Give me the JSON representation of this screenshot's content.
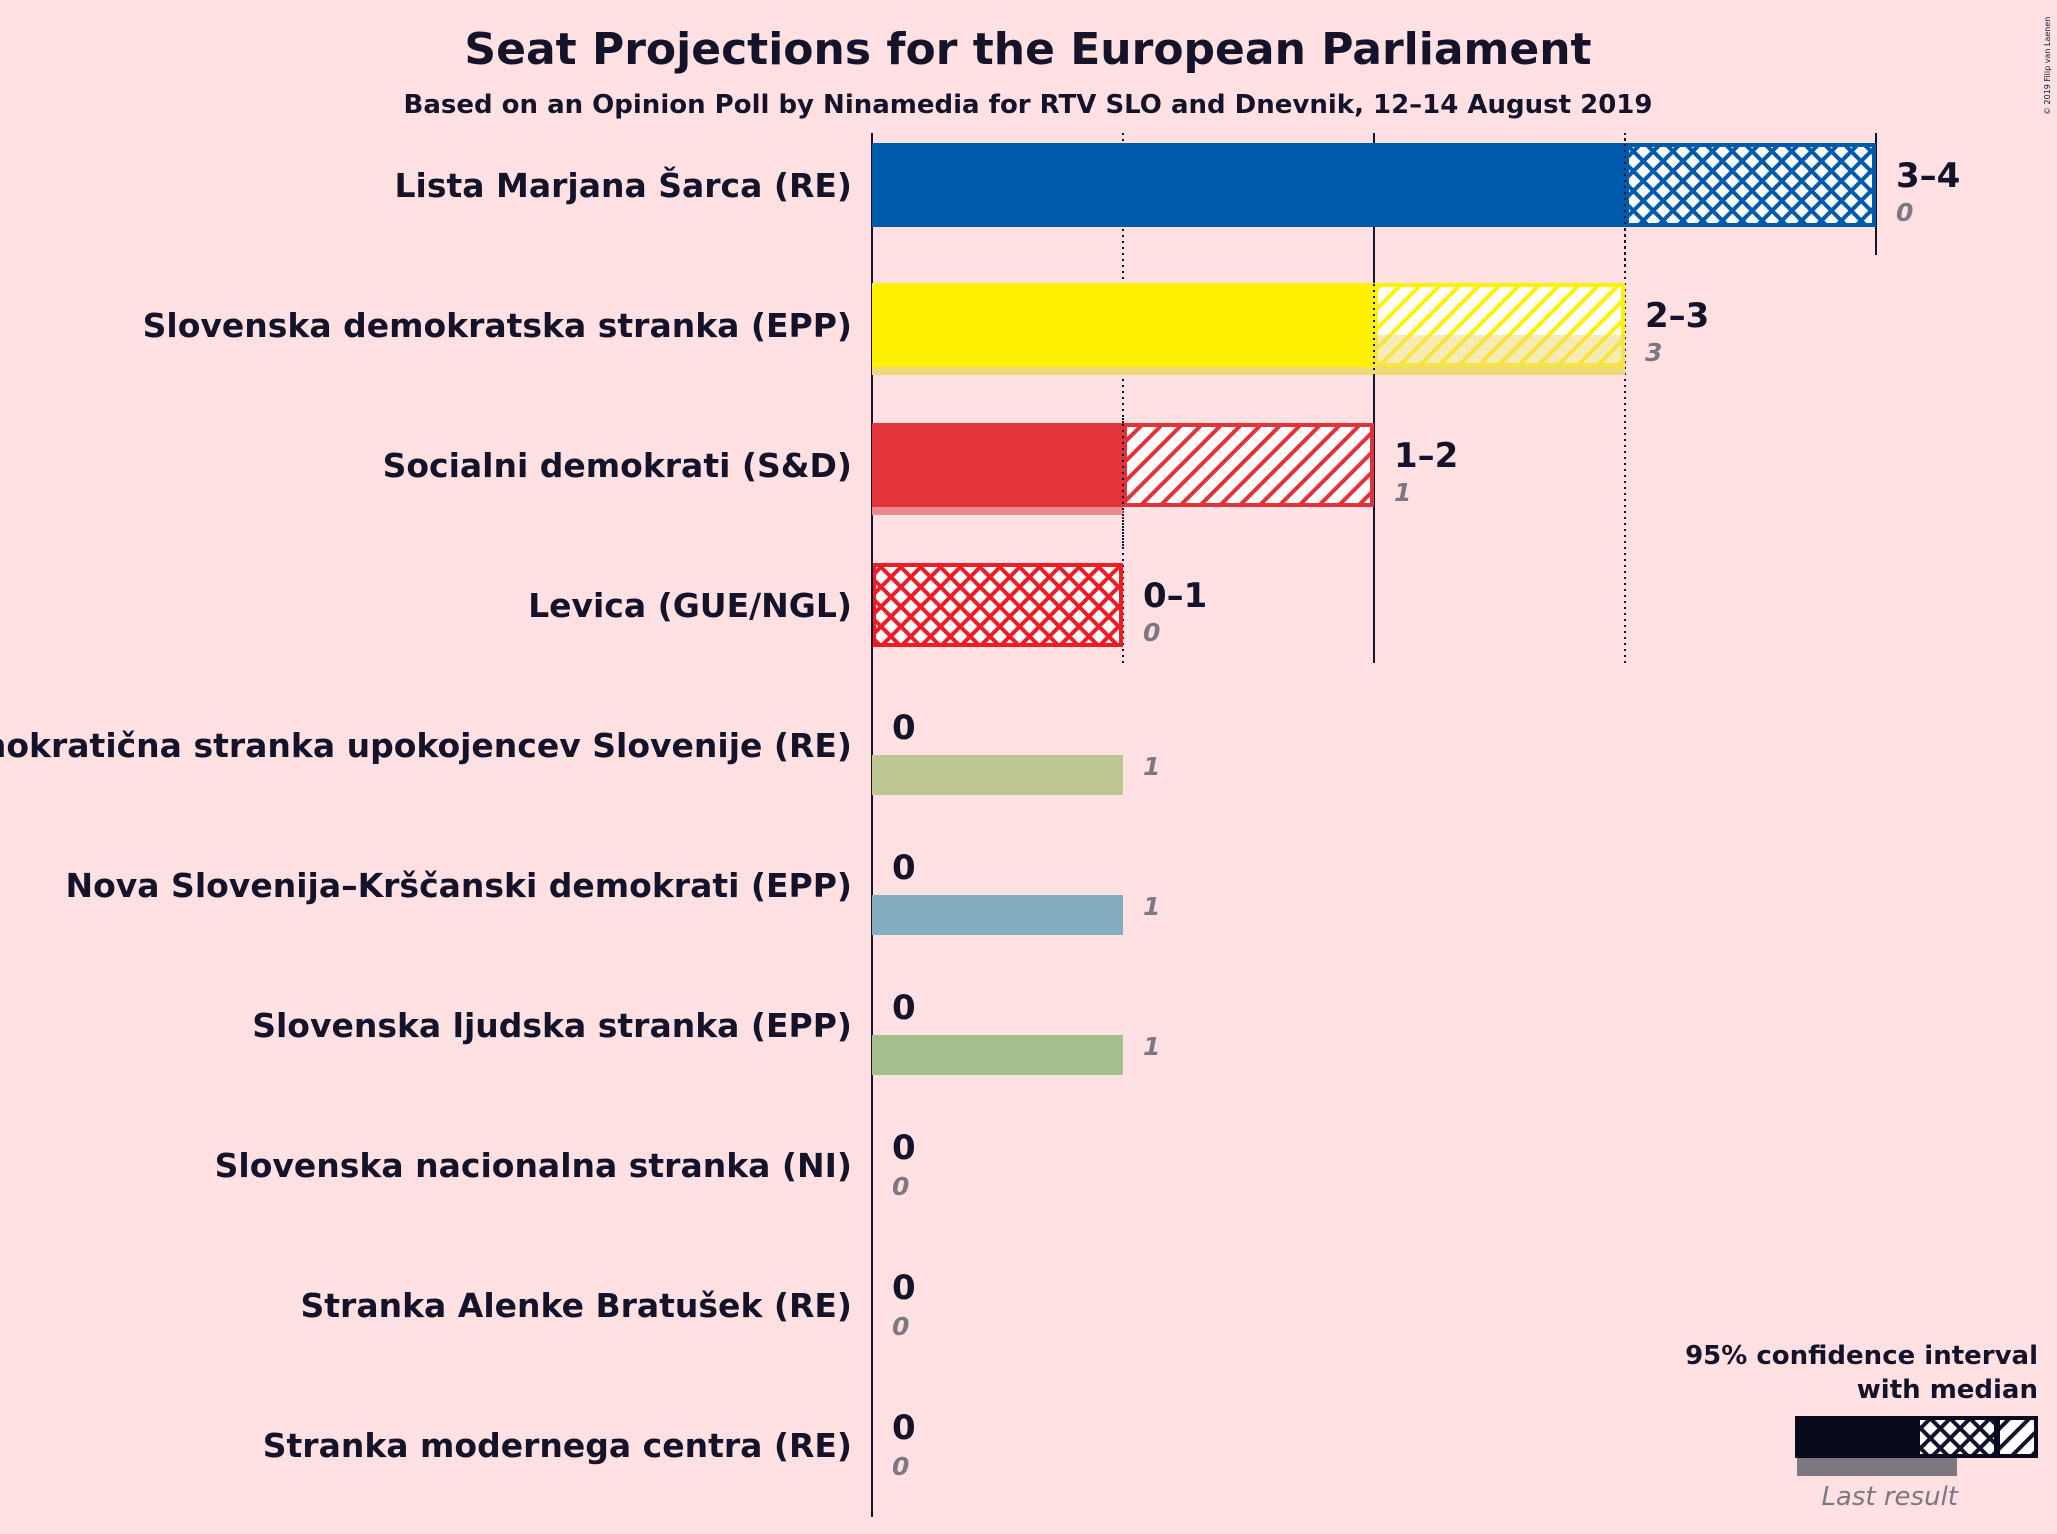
{
  "title": "Seat Projections for the European Parliament",
  "subtitle": "Based on an Opinion Poll by Ninamedia for RTV SLO and Dnevnik, 12–14 August 2019",
  "copyright": "© 2019 Filip van Laenen",
  "legend": {
    "line1": "95% confidence interval",
    "line2": "with median",
    "last_result": "Last result"
  },
  "chart_data": {
    "type": "bar",
    "orientation": "horizontal",
    "title": "Seat Projections for the European Parliament",
    "subtitle": "Based on an Opinion Poll by Ninamedia for RTV SLO and Dnevnik, 12–14 August 2019",
    "xlim": [
      0,
      4
    ],
    "gridlines": [
      1,
      2,
      3
    ],
    "categories": [
      "Lista Marjana Šarca (RE)",
      "Slovenska demokratska stranka (EPP)",
      "Socialni demokrati (S&D)",
      "Levica (GUE/NGL)",
      "Demokratična stranka upokojencev Slovenije (RE)",
      "Nova Slovenija–Krščanski demokrati (EPP)",
      "Slovenska ljudska stranka (EPP)",
      "Slovenska nacionalna stranka (NI)",
      "Stranka Alenke Bratušek (RE)",
      "Stranka modernega centra (RE)"
    ],
    "parties": [
      {
        "name": "Lista Marjana Šarca (RE)",
        "low": 3,
        "median": 3,
        "high": 4,
        "range_label": "3–4",
        "last_result": 0,
        "last_label": "0",
        "color": "#005aab",
        "last_color": "#7fb0d9"
      },
      {
        "name": "Slovenska demokratska stranka (EPP)",
        "low": 2,
        "median": 2,
        "high": 3,
        "range_label": "2–3",
        "last_result": 3,
        "last_label": "3",
        "color": "#fff200",
        "last_color": "#eedb77"
      },
      {
        "name": "Socialni demokrati (S&D)",
        "low": 1,
        "median": 1,
        "high": 2,
        "range_label": "1–2",
        "last_result": 1,
        "last_label": "1",
        "color": "#e3333a",
        "last_color": "#e88a8c"
      },
      {
        "name": "Levica (GUE/NGL)",
        "low": 0,
        "median": 0,
        "high": 1,
        "range_label": "0–1",
        "last_result": 0,
        "last_label": "0",
        "color": "#ee1c25",
        "last_color": "#f08a8f"
      },
      {
        "name": "Demokratična stranka upokojencev Slovenije (RE)",
        "low": 0,
        "median": 0,
        "high": 0,
        "range_label": "0",
        "last_result": 1,
        "last_label": "1",
        "color": "#8dab3f",
        "last_color": "#bdc591"
      },
      {
        "name": "Nova Slovenija–Krščanski demokrati (EPP)",
        "low": 0,
        "median": 0,
        "high": 0,
        "range_label": "0",
        "last_result": 1,
        "last_label": "1",
        "color": "#2b7ab0",
        "last_color": "#82aec0"
      },
      {
        "name": "Slovenska ljudska stranka (EPP)",
        "low": 0,
        "median": 0,
        "high": 0,
        "range_label": "0",
        "last_result": 1,
        "last_label": "1",
        "color": "#3d8f2e",
        "last_color": "#a4bf8c"
      },
      {
        "name": "Slovenska nacionalna stranka (NI)",
        "low": 0,
        "median": 0,
        "high": 0,
        "range_label": "0",
        "last_result": 0,
        "last_label": "0",
        "color": "#1a1a1a",
        "last_color": "#999999"
      },
      {
        "name": "Stranka Alenke Bratušek (RE)",
        "low": 0,
        "median": 0,
        "high": 0,
        "range_label": "0",
        "last_result": 0,
        "last_label": "0",
        "color": "#1a1a1a",
        "last_color": "#999999"
      },
      {
        "name": "Stranka modernega centra (RE)",
        "low": 0,
        "median": 0,
        "high": 0,
        "range_label": "0",
        "last_result": 0,
        "last_label": "0",
        "color": "#1a1a1a",
        "last_color": "#999999"
      }
    ]
  }
}
